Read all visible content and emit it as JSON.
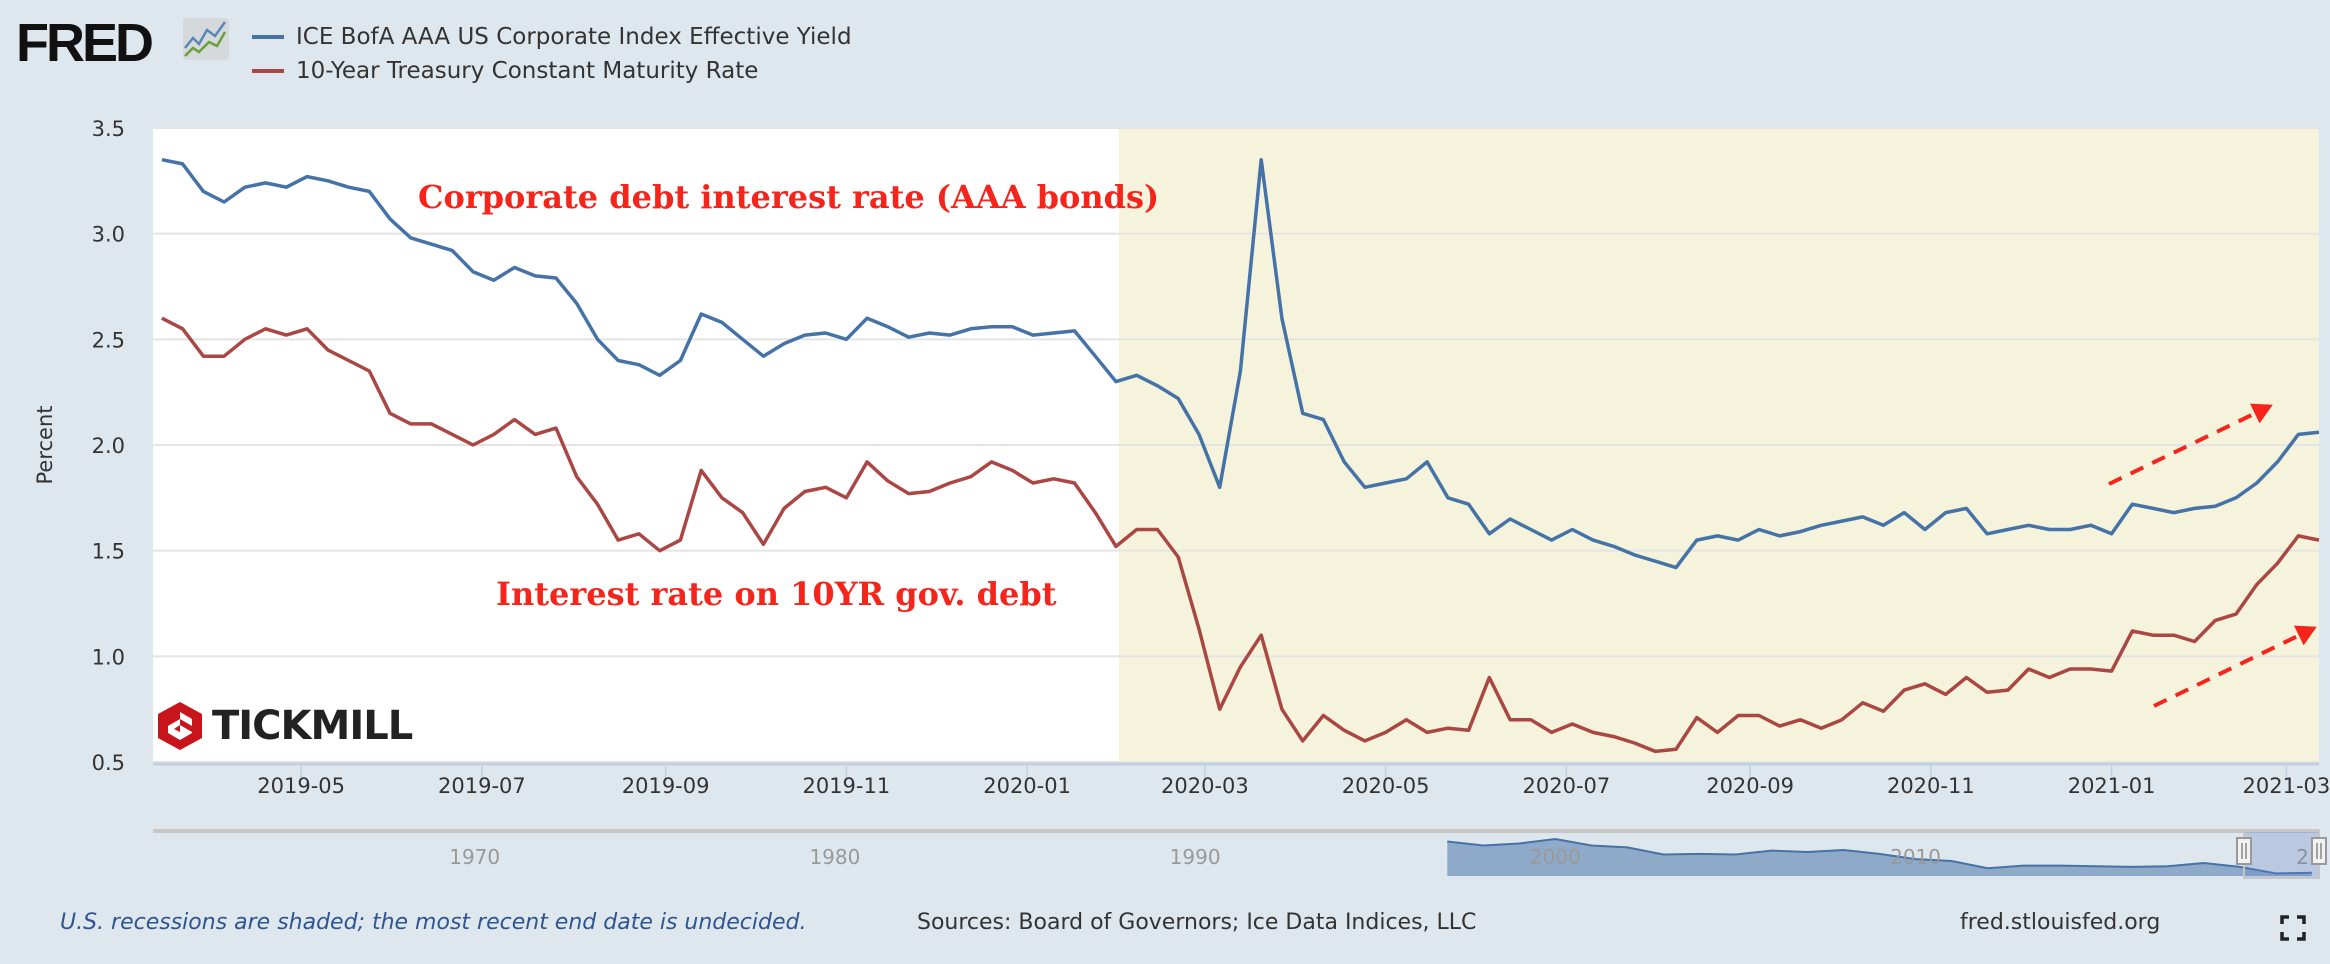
{
  "header": {
    "logo_text": "FRED",
    "logo_icon": "chart-line-icon"
  },
  "chart_data": {
    "type": "line",
    "ylabel": "Percent",
    "ylim": [
      0.5,
      3.5
    ],
    "yticks": [
      0.5,
      1.0,
      1.5,
      2.0,
      2.5,
      3.0,
      3.5
    ],
    "xlim": [
      "2019-03-12",
      "2021-03-12"
    ],
    "xticks": [
      "2019-05",
      "2019-07",
      "2019-09",
      "2019-11",
      "2020-01",
      "2020-03",
      "2020-05",
      "2020-07",
      "2020-09",
      "2020-11",
      "2021-01",
      "2021-03"
    ],
    "grid": true,
    "recession_shading": {
      "start": "2020-02-01",
      "end": "2021-03-12",
      "color": "#f5f3dc"
    },
    "legend_position": "top-left",
    "dates": [
      "2019-03-15",
      "2019-03-22",
      "2019-03-29",
      "2019-04-05",
      "2019-04-12",
      "2019-04-19",
      "2019-04-26",
      "2019-05-03",
      "2019-05-10",
      "2019-05-17",
      "2019-05-24",
      "2019-05-31",
      "2019-06-07",
      "2019-06-14",
      "2019-06-21",
      "2019-06-28",
      "2019-07-05",
      "2019-07-12",
      "2019-07-19",
      "2019-07-26",
      "2019-08-02",
      "2019-08-09",
      "2019-08-16",
      "2019-08-23",
      "2019-08-30",
      "2019-09-06",
      "2019-09-13",
      "2019-09-20",
      "2019-09-27",
      "2019-10-04",
      "2019-10-11",
      "2019-10-18",
      "2019-10-25",
      "2019-11-01",
      "2019-11-08",
      "2019-11-15",
      "2019-11-22",
      "2019-11-29",
      "2019-12-06",
      "2019-12-13",
      "2019-12-20",
      "2019-12-27",
      "2020-01-03",
      "2020-01-10",
      "2020-01-17",
      "2020-01-24",
      "2020-01-31",
      "2020-02-07",
      "2020-02-14",
      "2020-02-21",
      "2020-02-28",
      "2020-03-06",
      "2020-03-13",
      "2020-03-20",
      "2020-03-27",
      "2020-04-03",
      "2020-04-10",
      "2020-04-17",
      "2020-04-24",
      "2020-05-01",
      "2020-05-08",
      "2020-05-15",
      "2020-05-22",
      "2020-05-29",
      "2020-06-05",
      "2020-06-12",
      "2020-06-19",
      "2020-06-26",
      "2020-07-03",
      "2020-07-10",
      "2020-07-17",
      "2020-07-24",
      "2020-07-31",
      "2020-08-07",
      "2020-08-14",
      "2020-08-21",
      "2020-08-28",
      "2020-09-04",
      "2020-09-11",
      "2020-09-18",
      "2020-09-25",
      "2020-10-02",
      "2020-10-09",
      "2020-10-16",
      "2020-10-23",
      "2020-10-30",
      "2020-11-06",
      "2020-11-13",
      "2020-11-20",
      "2020-11-27",
      "2020-12-04",
      "2020-12-11",
      "2020-12-18",
      "2020-12-25",
      "2021-01-01",
      "2021-01-08",
      "2021-01-15",
      "2021-01-22",
      "2021-01-29",
      "2021-02-05",
      "2021-02-12",
      "2021-02-19",
      "2021-02-26",
      "2021-03-05",
      "2021-03-12"
    ],
    "series": [
      {
        "name": "ICE BofA AAA US Corporate Index Effective Yield",
        "color": "#4572a7",
        "values": [
          3.35,
          3.33,
          3.2,
          3.15,
          3.22,
          3.24,
          3.22,
          3.27,
          3.25,
          3.22,
          3.2,
          3.07,
          2.98,
          2.95,
          2.92,
          2.82,
          2.78,
          2.84,
          2.8,
          2.79,
          2.67,
          2.5,
          2.4,
          2.38,
          2.33,
          2.4,
          2.62,
          2.58,
          2.5,
          2.42,
          2.48,
          2.52,
          2.53,
          2.5,
          2.6,
          2.56,
          2.51,
          2.53,
          2.52,
          2.55,
          2.56,
          2.56,
          2.52,
          2.53,
          2.54,
          2.42,
          2.3,
          2.33,
          2.28,
          2.22,
          2.05,
          1.8,
          2.35,
          3.35,
          2.6,
          2.15,
          2.12,
          1.92,
          1.8,
          1.82,
          1.84,
          1.92,
          1.75,
          1.72,
          1.58,
          1.65,
          1.6,
          1.55,
          1.6,
          1.55,
          1.52,
          1.48,
          1.45,
          1.42,
          1.55,
          1.57,
          1.55,
          1.6,
          1.57,
          1.59,
          1.62,
          1.64,
          1.66,
          1.62,
          1.68,
          1.6,
          1.68,
          1.7,
          1.58,
          1.6,
          1.62,
          1.6,
          1.6,
          1.62,
          1.58,
          1.72,
          1.7,
          1.68,
          1.7,
          1.71,
          1.75,
          1.82,
          1.92,
          2.05,
          2.06
        ]
      },
      {
        "name": "10-Year Treasury Constant Maturity Rate",
        "color": "#aa4643",
        "values": [
          2.6,
          2.55,
          2.42,
          2.42,
          2.5,
          2.55,
          2.52,
          2.55,
          2.45,
          2.4,
          2.35,
          2.15,
          2.1,
          2.1,
          2.05,
          2.0,
          2.05,
          2.12,
          2.05,
          2.08,
          1.85,
          1.72,
          1.55,
          1.58,
          1.5,
          1.55,
          1.88,
          1.75,
          1.68,
          1.53,
          1.7,
          1.78,
          1.8,
          1.75,
          1.92,
          1.83,
          1.77,
          1.78,
          1.82,
          1.85,
          1.92,
          1.88,
          1.82,
          1.84,
          1.82,
          1.68,
          1.52,
          1.6,
          1.6,
          1.47,
          1.13,
          0.75,
          0.95,
          1.1,
          0.75,
          0.6,
          0.72,
          0.65,
          0.6,
          0.64,
          0.7,
          0.64,
          0.66,
          0.65,
          0.9,
          0.7,
          0.7,
          0.64,
          0.68,
          0.64,
          0.62,
          0.59,
          0.55,
          0.56,
          0.71,
          0.64,
          0.72,
          0.72,
          0.67,
          0.7,
          0.66,
          0.7,
          0.78,
          0.74,
          0.84,
          0.87,
          0.82,
          0.9,
          0.83,
          0.84,
          0.94,
          0.9,
          0.94,
          0.94,
          0.93,
          1.12,
          1.1,
          1.1,
          1.07,
          1.17,
          1.2,
          1.34,
          1.44,
          1.57,
          1.55
        ]
      }
    ],
    "annotations": {
      "corporate": "Corporate debt interest rate (AAA bonds)",
      "treasury": "Interest rate on 10YR gov. debt"
    },
    "navigator": {
      "decades": [
        "1970",
        "1980",
        "1990",
        "2000",
        "2010",
        "2..."
      ],
      "years": [
        1997,
        1998,
        1999,
        2000,
        2001,
        2002,
        2003,
        2004,
        2005,
        2006,
        2007,
        2008,
        2009,
        2010,
        2011,
        2012,
        2013,
        2014,
        2015,
        2016,
        2017,
        2018,
        2019,
        2020,
        2021
      ],
      "values": [
        6.9,
        6.3,
        6.6,
        7.3,
        6.3,
        6.0,
        4.9,
        5.0,
        4.9,
        5.5,
        5.3,
        5.6,
        5.0,
        4.2,
        3.9,
        2.8,
        3.2,
        3.2,
        3.1,
        3.0,
        3.1,
        3.6,
        3.0,
        2.0,
        2.1
      ],
      "selection": [
        "2019-03-12",
        "2021-03-12"
      ]
    }
  },
  "watermark": {
    "text": "TICKMILL"
  },
  "footer": {
    "note": "U.S. recessions are shaded; the most recent end date is undecided.",
    "sources": "Sources: Board of Governors; Ice Data Indices, LLC",
    "url": "fred.stlouisfed.org",
    "fullscreen_icon": "fullscreen-icon"
  }
}
